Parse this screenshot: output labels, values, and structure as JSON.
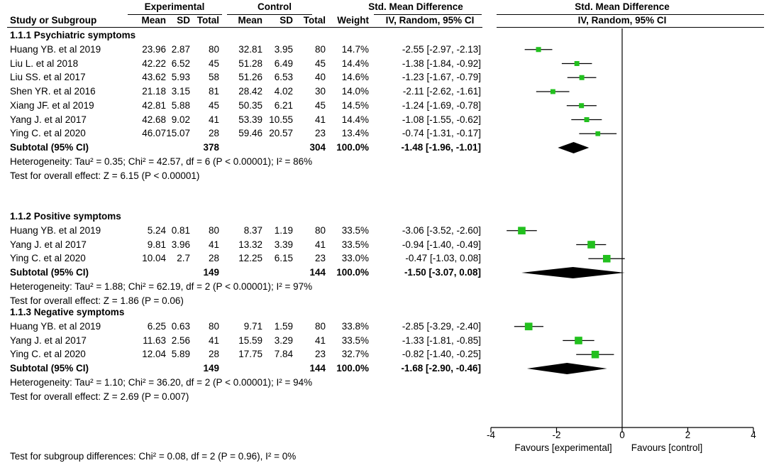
{
  "header": {
    "group1": "Experimental",
    "group2": "Control",
    "smd_title": "Std. Mean Difference",
    "smd_method": "IV, Random, 95% CI",
    "plot_title": "Std. Mean Difference",
    "plot_method": "IV, Random, 95% CI",
    "columns": [
      "Study or Subgroup",
      "Mean",
      "SD",
      "Total",
      "Mean",
      "SD",
      "Total",
      "Weight"
    ]
  },
  "groups": [
    {
      "title": "1.1.1 Psychiatric symptoms",
      "studies": [
        {
          "name": "Huang YB. et al 2019",
          "m1": "23.96",
          "sd1": "2.87",
          "n1": "80",
          "m2": "32.81",
          "sd2": "3.95",
          "n2": "80",
          "weight": "14.7%",
          "ci": "-2.55 [-2.97, -2.13]"
        },
        {
          "name": "Liu L. et al 2018",
          "m1": "42.22",
          "sd1": "6.52",
          "n1": "45",
          "m2": "51.28",
          "sd2": "6.49",
          "n2": "45",
          "weight": "14.4%",
          "ci": "-1.38 [-1.84, -0.92]"
        },
        {
          "name": "Liu SS. et al 2017",
          "m1": "43.62",
          "sd1": "5.93",
          "n1": "58",
          "m2": "51.26",
          "sd2": "6.53",
          "n2": "40",
          "weight": "14.6%",
          "ci": "-1.23 [-1.67, -0.79]"
        },
        {
          "name": "Shen YR. et al 2016",
          "m1": "21.18",
          "sd1": "3.15",
          "n1": "81",
          "m2": "28.42",
          "sd2": "4.02",
          "n2": "30",
          "weight": "14.0%",
          "ci": "-2.11 [-2.62, -1.61]"
        },
        {
          "name": "Xiang JF. et al 2019",
          "m1": "42.81",
          "sd1": "5.88",
          "n1": "45",
          "m2": "50.35",
          "sd2": "6.21",
          "n2": "45",
          "weight": "14.5%",
          "ci": "-1.24 [-1.69, -0.78]"
        },
        {
          "name": "Yang J. et al 2017",
          "m1": "42.68",
          "sd1": "9.02",
          "n1": "41",
          "m2": "53.39",
          "sd2": "10.55",
          "n2": "41",
          "weight": "14.4%",
          "ci": "-1.08 [-1.55, -0.62]"
        },
        {
          "name": "Ying C. et al 2020",
          "m1": "46.07",
          "sd1": "15.07",
          "n1": "28",
          "m2": "59.46",
          "sd2": "20.57",
          "n2": "23",
          "weight": "13.4%",
          "ci": "-0.74 [-1.31, -0.17]"
        }
      ],
      "subtotal": {
        "label": "Subtotal (95% CI)",
        "n1": "378",
        "n2": "304",
        "weight": "100.0%",
        "ci": "-1.48 [-1.96, -1.01]"
      },
      "heterogeneity": "Heterogeneity: Tau² = 0.35; Chi² = 42.57, df = 6 (P < 0.00001); I² = 86%",
      "overall": "Test for overall effect: Z = 6.15 (P < 0.00001)"
    },
    {
      "title": "1.1.2 Positive symptoms",
      "studies": [
        {
          "name": "Huang YB. et al 2019",
          "m1": "5.24",
          "sd1": "0.81",
          "n1": "80",
          "m2": "8.37",
          "sd2": "1.19",
          "n2": "80",
          "weight": "33.5%",
          "ci": "-3.06 [-3.52, -2.60]"
        },
        {
          "name": "Yang J. et al 2017",
          "m1": "9.81",
          "sd1": "3.96",
          "n1": "41",
          "m2": "13.32",
          "sd2": "3.39",
          "n2": "41",
          "weight": "33.5%",
          "ci": "-0.94 [-1.40, -0.49]"
        },
        {
          "name": "Ying C. et al 2020",
          "m1": "10.04",
          "sd1": "2.7",
          "n1": "28",
          "m2": "12.25",
          "sd2": "6.15",
          "n2": "23",
          "weight": "33.0%",
          "ci": "-0.47 [-1.03, 0.08]"
        }
      ],
      "subtotal": {
        "label": "Subtotal (95% CI)",
        "n1": "149",
        "n2": "144",
        "weight": "100.0%",
        "ci": "-1.50 [-3.07, 0.08]"
      },
      "heterogeneity": "Heterogeneity: Tau² = 1.88; Chi² = 62.19, df = 2 (P < 0.00001); I² = 97%",
      "overall": "Test for overall effect: Z = 1.86 (P = 0.06)"
    },
    {
      "title": "1.1.3 Negative symptoms",
      "studies": [
        {
          "name": "Huang YB. et al 2019",
          "m1": "6.25",
          "sd1": "0.63",
          "n1": "80",
          "m2": "9.71",
          "sd2": "1.59",
          "n2": "80",
          "weight": "33.8%",
          "ci": "-2.85 [-3.29, -2.40]"
        },
        {
          "name": "Yang J. et al 2017",
          "m1": "11.63",
          "sd1": "2.56",
          "n1": "41",
          "m2": "15.59",
          "sd2": "3.29",
          "n2": "41",
          "weight": "33.5%",
          "ci": "-1.33 [-1.81, -0.85]"
        },
        {
          "name": "Ying C. et al 2020",
          "m1": "12.04",
          "sd1": "5.89",
          "n1": "28",
          "m2": "17.75",
          "sd2": "7.84",
          "n2": "23",
          "weight": "32.7%",
          "ci": "-0.82 [-1.40, -0.25]"
        }
      ],
      "subtotal": {
        "label": "Subtotal (95% CI)",
        "n1": "149",
        "n2": "144",
        "weight": "100.0%",
        "ci": "-1.68 [-2.90, -0.46]"
      },
      "heterogeneity": "Heterogeneity: Tau² = 1.10; Chi² = 36.20, df = 2 (P < 0.00001); I² = 94%",
      "overall": "Test for overall effect: Z = 2.69 (P = 0.007)"
    }
  ],
  "footer": {
    "subgroup_test": "Test for subgroup differences: Chi² = 0.08, df = 2 (P = 0.96), I² = 0%"
  },
  "colors": {
    "marker": "#22c01e",
    "diamond": "#000000"
  },
  "chart_data": {
    "type": "forest",
    "xlim": [
      -4,
      4
    ],
    "xticks": [
      -4,
      -2,
      0,
      2,
      4
    ],
    "xtick_labels": [
      "-4",
      "-2",
      "0",
      "2",
      "4"
    ],
    "favours_left": "Favours [experimental]",
    "favours_right": "Favours [control]",
    "groups": [
      {
        "studies": [
          {
            "est": -2.55,
            "lo": -2.97,
            "hi": -2.13,
            "weight": 14.7
          },
          {
            "est": -1.38,
            "lo": -1.84,
            "hi": -0.92,
            "weight": 14.4
          },
          {
            "est": -1.23,
            "lo": -1.67,
            "hi": -0.79,
            "weight": 14.6
          },
          {
            "est": -2.11,
            "lo": -2.62,
            "hi": -1.61,
            "weight": 14.0
          },
          {
            "est": -1.24,
            "lo": -1.69,
            "hi": -0.78,
            "weight": 14.5
          },
          {
            "est": -1.08,
            "lo": -1.55,
            "hi": -0.62,
            "weight": 14.4
          },
          {
            "est": -0.74,
            "lo": -1.31,
            "hi": -0.17,
            "weight": 13.4
          }
        ],
        "subtotal": {
          "est": -1.48,
          "lo": -1.96,
          "hi": -1.01
        }
      },
      {
        "studies": [
          {
            "est": -3.06,
            "lo": -3.52,
            "hi": -2.6,
            "weight": 33.5
          },
          {
            "est": -0.94,
            "lo": -1.4,
            "hi": -0.49,
            "weight": 33.5
          },
          {
            "est": -0.47,
            "lo": -1.03,
            "hi": 0.08,
            "weight": 33.0
          }
        ],
        "subtotal": {
          "est": -1.5,
          "lo": -3.07,
          "hi": 0.08
        }
      },
      {
        "studies": [
          {
            "est": -2.85,
            "lo": -3.29,
            "hi": -2.4,
            "weight": 33.8
          },
          {
            "est": -1.33,
            "lo": -1.81,
            "hi": -0.85,
            "weight": 33.5
          },
          {
            "est": -0.82,
            "lo": -1.4,
            "hi": -0.25,
            "weight": 32.7
          }
        ],
        "subtotal": {
          "est": -1.68,
          "lo": -2.9,
          "hi": -0.46
        }
      }
    ]
  }
}
